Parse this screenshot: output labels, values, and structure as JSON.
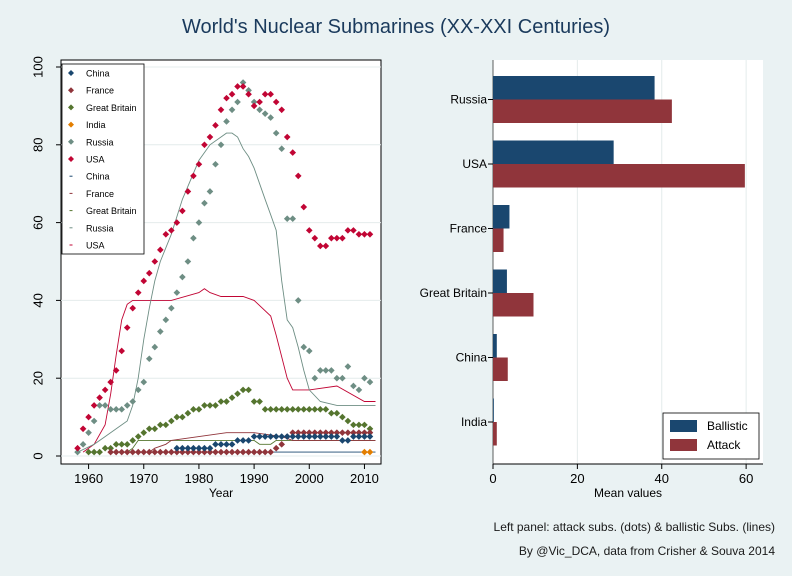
{
  "title": "World's Nuclear Submarines (XX-XXI Centuries)",
  "notes": {
    "left_panel": "Left panel: attack subs. (dots) & ballistic Subs. (lines)",
    "credit": "By @Vic_DCA, data from Crisher & Souva 2014"
  },
  "colors": {
    "China": "#1a476f",
    "France": "#90353b",
    "Great Britain": "#55752f",
    "India": "#e37e00",
    "Russia": "#6e8e84",
    "USA": "#c10534",
    "ballistic_bar": "#1a476f",
    "attack_bar": "#90353b"
  },
  "chart_data": [
    {
      "type": "line",
      "panel": "left",
      "xlabel": "Year",
      "ylabel": "",
      "xlim": [
        1955,
        2013
      ],
      "ylim": [
        0,
        100
      ],
      "xticks": [
        1960,
        1970,
        1980,
        1990,
        2000,
        2010
      ],
      "yticks": [
        0,
        20,
        40,
        60,
        80,
        100
      ],
      "grid": true,
      "legend_position": "top-left",
      "legend": [
        {
          "label": "China",
          "kind": "dot",
          "series": "China"
        },
        {
          "label": "France",
          "kind": "dot",
          "series": "France"
        },
        {
          "label": "Great Britain",
          "kind": "dot",
          "series": "Great Britain"
        },
        {
          "label": "India",
          "kind": "dot",
          "series": "India"
        },
        {
          "label": "Russia",
          "kind": "dot",
          "series": "Russia"
        },
        {
          "label": "USA",
          "kind": "dot",
          "series": "USA"
        },
        {
          "label": "China",
          "kind": "line",
          "series": "China"
        },
        {
          "label": "France",
          "kind": "line",
          "series": "France"
        },
        {
          "label": "Great Britain",
          "kind": "line",
          "series": "Great Britain"
        },
        {
          "label": "Russia",
          "kind": "line",
          "series": "Russia"
        },
        {
          "label": "USA",
          "kind": "line",
          "series": "USA"
        }
      ],
      "attack_series": [
        {
          "name": "USA",
          "x": [
            1958,
            1959,
            1960,
            1961,
            1962,
            1963,
            1964,
            1965,
            1966,
            1967,
            1968,
            1969,
            1970,
            1971,
            1972,
            1973,
            1974,
            1975,
            1976,
            1977,
            1978,
            1979,
            1980,
            1981,
            1982,
            1983,
            1984,
            1985,
            1986,
            1987,
            1988,
            1989,
            1990,
            1991,
            1992,
            1993,
            1994,
            1995,
            1996,
            1997,
            1998,
            1999,
            2000,
            2001,
            2002,
            2003,
            2004,
            2005,
            2006,
            2007,
            2008,
            2009,
            2010,
            2011
          ],
          "y": [
            2,
            7,
            10,
            13,
            15,
            17,
            19,
            22,
            27,
            33,
            38,
            42,
            45,
            47,
            50,
            53,
            57,
            58,
            60,
            63,
            68,
            72,
            75,
            80,
            82,
            85,
            89,
            92,
            93,
            95,
            95,
            93,
            90,
            91,
            93,
            93,
            91,
            89,
            82,
            78,
            72,
            64,
            58,
            56,
            54,
            54,
            56,
            56,
            56,
            58,
            58,
            57,
            57,
            57
          ]
        },
        {
          "name": "Russia",
          "x": [
            1958,
            1959,
            1960,
            1961,
            1962,
            1963,
            1964,
            1965,
            1966,
            1967,
            1968,
            1969,
            1970,
            1971,
            1972,
            1973,
            1974,
            1975,
            1976,
            1977,
            1978,
            1979,
            1980,
            1981,
            1982,
            1983,
            1984,
            1985,
            1986,
            1987,
            1988,
            1989,
            1990,
            1991,
            1992,
            1993,
            1994,
            1995,
            1996,
            1997,
            1998,
            1999,
            2000,
            2001,
            2002,
            2003,
            2004,
            2005,
            2006,
            2007,
            2008,
            2009,
            2010,
            2011
          ],
          "y": [
            1,
            3,
            6,
            9,
            13,
            13,
            12,
            12,
            12,
            13,
            14,
            17,
            19,
            25,
            28,
            32,
            35,
            38,
            42,
            46,
            50,
            56,
            60,
            65,
            68,
            75,
            80,
            86,
            89,
            91,
            96,
            94,
            91,
            89,
            88,
            87,
            83,
            79,
            61,
            61,
            40,
            28,
            27,
            20,
            22,
            22,
            22,
            20,
            20,
            23,
            18,
            17,
            20,
            19
          ]
        },
        {
          "name": "Great Britain",
          "x": [
            1960,
            1961,
            1962,
            1963,
            1964,
            1965,
            1966,
            1967,
            1968,
            1969,
            1970,
            1971,
            1972,
            1973,
            1974,
            1975,
            1976,
            1977,
            1978,
            1979,
            1980,
            1981,
            1982,
            1983,
            1984,
            1985,
            1986,
            1987,
            1988,
            1989,
            1990,
            1991,
            1992,
            1993,
            1994,
            1995,
            1996,
            1997,
            1998,
            1999,
            2000,
            2001,
            2002,
            2003,
            2004,
            2005,
            2006,
            2007,
            2008,
            2009,
            2010,
            2011
          ],
          "y": [
            1,
            1,
            1,
            2,
            2,
            3,
            3,
            3,
            4,
            5,
            6,
            7,
            7,
            8,
            8,
            9,
            10,
            10,
            11,
            12,
            12,
            13,
            13,
            13,
            14,
            14,
            15,
            16,
            17,
            17,
            14,
            14,
            12,
            12,
            12,
            12,
            12,
            12,
            12,
            12,
            12,
            12,
            12,
            12,
            11,
            11,
            10,
            9,
            8,
            8,
            8,
            7
          ]
        },
        {
          "name": "France",
          "x": [
            1964,
            1965,
            1966,
            1967,
            1968,
            1969,
            1970,
            1971,
            1972,
            1973,
            1974,
            1975,
            1976,
            1977,
            1978,
            1979,
            1980,
            1981,
            1982,
            1983,
            1984,
            1985,
            1986,
            1987,
            1988,
            1989,
            1990,
            1991,
            1992,
            1993,
            1994,
            1995,
            1996,
            1997,
            1998,
            1999,
            2000,
            2001,
            2002,
            2003,
            2004,
            2005,
            2006,
            2007,
            2008,
            2009,
            2010,
            2011
          ],
          "y": [
            1,
            1,
            1,
            1,
            1,
            1,
            1,
            1,
            1,
            1,
            1,
            1,
            1,
            1,
            1,
            1,
            1,
            1,
            1,
            1,
            1,
            1,
            1,
            1,
            1,
            1,
            1,
            1,
            1,
            1,
            2,
            3,
            5,
            6,
            6,
            6,
            6,
            6,
            6,
            6,
            6,
            6,
            6,
            6,
            6,
            6,
            6,
            6
          ]
        },
        {
          "name": "China",
          "x": [
            1976,
            1977,
            1978,
            1979,
            1980,
            1981,
            1982,
            1983,
            1984,
            1985,
            1986,
            1987,
            1988,
            1989,
            1990,
            1991,
            1992,
            1993,
            1994,
            1995,
            1996,
            1997,
            1998,
            1999,
            2000,
            2001,
            2002,
            2003,
            2004,
            2005,
            2006,
            2007,
            2008,
            2009,
            2010,
            2011
          ],
          "y": [
            2,
            2,
            2,
            2,
            2,
            2,
            2,
            3,
            3,
            3,
            3,
            4,
            4,
            4,
            5,
            5,
            5,
            5,
            5,
            5,
            5,
            5,
            5,
            5,
            5,
            5,
            5,
            5,
            5,
            5,
            4,
            4,
            5,
            5,
            5,
            5
          ]
        },
        {
          "name": "India",
          "x": [
            2010,
            2011
          ],
          "y": [
            1,
            1
          ]
        }
      ],
      "ballistic_series": [
        {
          "name": "USA",
          "x": [
            1959,
            1961,
            1963,
            1964,
            1965,
            1966,
            1967,
            1968,
            1970,
            1975,
            1980,
            1981,
            1982,
            1984,
            1986,
            1988,
            1990,
            1993,
            1994,
            1996,
            1997,
            2000,
            2005,
            2010,
            2012
          ],
          "y": [
            1,
            3,
            8,
            16,
            26,
            35,
            39,
            40,
            40,
            40,
            42,
            43,
            42,
            41,
            41,
            41,
            40,
            36,
            31,
            20,
            17,
            17,
            18,
            14,
            14
          ]
        },
        {
          "name": "Russia",
          "x": [
            1958,
            1961,
            1963,
            1965,
            1967,
            1968,
            1969,
            1970,
            1971,
            1972,
            1973,
            1975,
            1977,
            1980,
            1982,
            1984,
            1985,
            1986,
            1987,
            1988,
            1989,
            1990,
            1991,
            1992,
            1993,
            1994,
            1995,
            1996,
            1997,
            1998,
            1999,
            2000,
            2002,
            2005,
            2008,
            2012
          ],
          "y": [
            1,
            3,
            5,
            7,
            9,
            13,
            20,
            30,
            38,
            45,
            50,
            57,
            66,
            76,
            80,
            82,
            83,
            83,
            82,
            79,
            77,
            74,
            70,
            66,
            62,
            58,
            45,
            35,
            33,
            28,
            22,
            17,
            14,
            13,
            13,
            13
          ]
        },
        {
          "name": "Great Britain",
          "x": [
            1967,
            1968,
            1969,
            1990,
            1991,
            1993,
            1994,
            1996,
            2000,
            2012
          ],
          "y": [
            1,
            2,
            4,
            4,
            3,
            3,
            4,
            4,
            4,
            4
          ]
        },
        {
          "name": "France",
          "x": [
            1971,
            1972,
            1974,
            1975,
            1980,
            1985,
            1988,
            1990,
            1995,
            1997,
            2000,
            2012
          ],
          "y": [
            1,
            2,
            3,
            4,
            5,
            6,
            6,
            6,
            5,
            4,
            4,
            4
          ]
        },
        {
          "name": "China",
          "x": [
            1988,
            2012
          ],
          "y": [
            1,
            1
          ]
        }
      ]
    },
    {
      "type": "bar",
      "panel": "right",
      "orientation": "horizontal",
      "xlabel": "Mean values",
      "xlim": [
        0,
        64
      ],
      "xticks": [
        0,
        20,
        40,
        60
      ],
      "grid": true,
      "legend_position": "bottom-right",
      "categories": [
        "Russia",
        "USA",
        "France",
        "Great Britain",
        "China",
        "India"
      ],
      "series": [
        {
          "name": "Ballistic",
          "values": [
            38.3,
            28.6,
            3.9,
            3.3,
            0.9,
            0.2
          ]
        },
        {
          "name": "Attack",
          "values": [
            42.4,
            59.7,
            2.5,
            9.6,
            3.5,
            0.9
          ]
        }
      ]
    }
  ]
}
